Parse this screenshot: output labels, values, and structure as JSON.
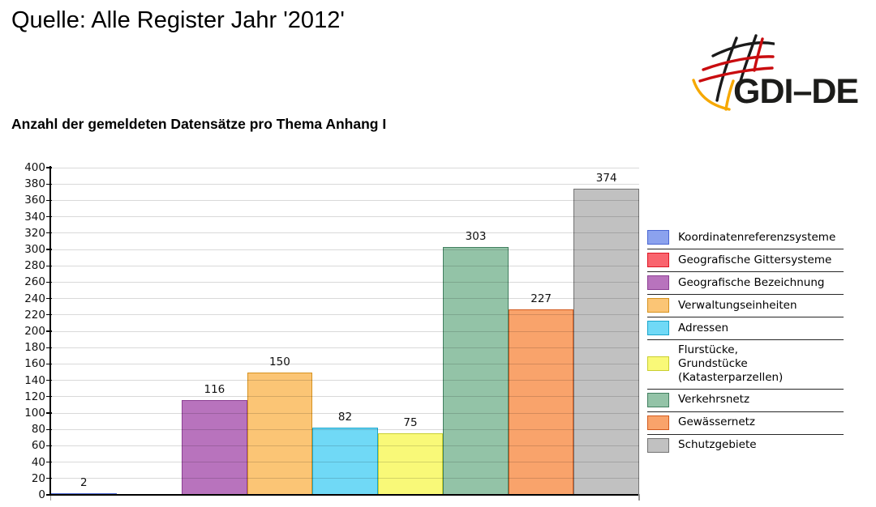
{
  "header": {
    "title": "Quelle: Alle Register Jahr '2012'"
  },
  "logo": {
    "text": "GDI–DE",
    "colors": {
      "black": "#1a1a1a",
      "red": "#c90c0f",
      "orange": "#f6a800"
    }
  },
  "chart": {
    "heading": "Anzahl der gemeldeten Datensätze pro Thema Anhang I"
  },
  "chart_data": {
    "type": "bar",
    "title": "Anzahl der gemeldeten Datensätze pro Thema Anhang I",
    "categories": [
      "Koordinatenreferenzsysteme",
      "Geografische Gittersysteme",
      "Geografische Bezeichnung",
      "Verwaltungseinheiten",
      "Adressen",
      "Flurstücke,\nGrundstücke (Katasterparzellen)",
      "Verkehrsnetz",
      "Gewässernetz",
      "Schutzgebiete"
    ],
    "values": [
      2,
      0,
      116,
      150,
      82,
      75,
      303,
      227,
      374
    ],
    "bar_colors": [
      {
        "fill": "#8ba2ee",
        "border": "#4a67d3"
      },
      {
        "fill": "#f9646e",
        "border": "#dd1826"
      },
      {
        "fill": "#b873bd",
        "border": "#8d4094"
      },
      {
        "fill": "#fbc575",
        "border": "#d6921f"
      },
      {
        "fill": "#70d9f6",
        "border": "#1ba6cc"
      },
      {
        "fill": "#f9f978",
        "border": "#c9cf30"
      },
      {
        "fill": "#93c3a7",
        "border": "#427f60"
      },
      {
        "fill": "#f9a36b",
        "border": "#d25a1e"
      },
      {
        "fill": "#c1c1c1",
        "border": "#737373"
      }
    ],
    "xlabel": "",
    "ylabel": "",
    "ylim": [
      0,
      400
    ],
    "ytick_step": 20,
    "grid": true,
    "gridline_color": "#d9d9d9",
    "legend_position": "right",
    "value_labels": true,
    "hide_zero_value_labels": true
  }
}
